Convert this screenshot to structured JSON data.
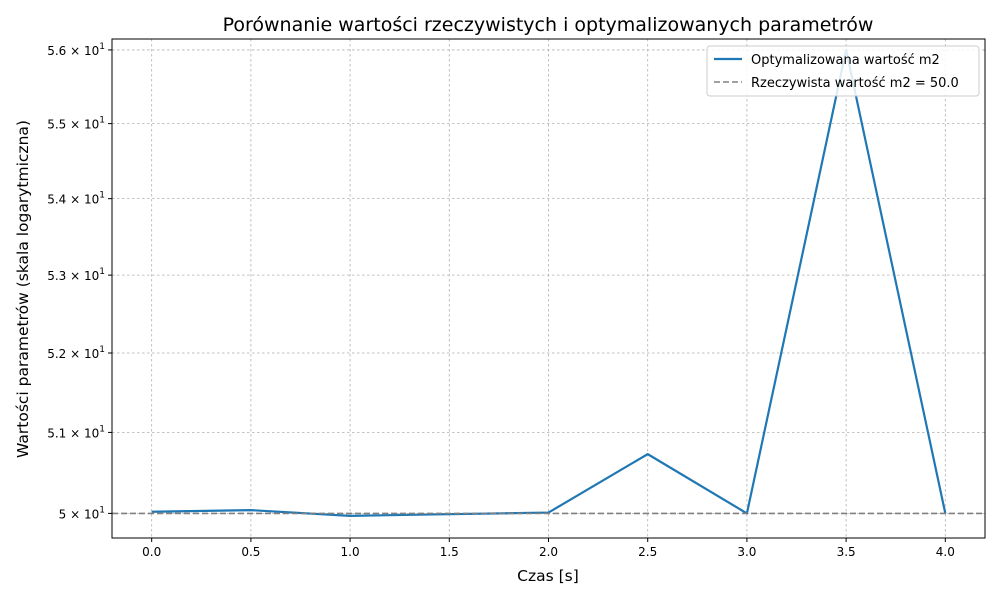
{
  "chart_data": {
    "type": "line",
    "title": "Porównanie wartości rzeczywistych i optymalizowanych parametrów",
    "xlabel": "Czas [s]",
    "ylabel": "Wartości parametrów (skala logarytmiczna)",
    "yscale": "log",
    "xlim": [
      -0.2,
      4.2
    ],
    "ylim": [
      49.7,
      56.15
    ],
    "xticks": [
      0.0,
      0.5,
      1.0,
      1.5,
      2.0,
      2.5,
      3.0,
      3.5,
      4.0
    ],
    "xtick_labels": [
      "0.0",
      "0.5",
      "1.0",
      "1.5",
      "2.0",
      "2.5",
      "3.0",
      "3.5",
      "4.0"
    ],
    "yticks": [
      50,
      51,
      52,
      53,
      54,
      55,
      56
    ],
    "ytick_labels": [
      {
        "mantissa": "",
        "exp": "1"
      },
      {
        "mantissa": "5.1 × ",
        "exp": "1"
      },
      {
        "mantissa": "5.2 × ",
        "exp": "1"
      },
      {
        "mantissa": "5.3 × ",
        "exp": "1"
      },
      {
        "mantissa": "5.4 × ",
        "exp": "1"
      },
      {
        "mantissa": "5.5 × ",
        "exp": "1"
      },
      {
        "mantissa": "5.6 × ",
        "exp": "1"
      }
    ],
    "ytick_base_first": "5 × 10",
    "ytick_base": "10",
    "grid": true,
    "legend_position": "top-right",
    "series": [
      {
        "name": "Optymalizowana wartość m2",
        "style": "solid",
        "color": "#1f77b4",
        "x": [
          0.0,
          0.5,
          1.0,
          1.5,
          2.0,
          2.5,
          3.0,
          3.5,
          4.0
        ],
        "y": [
          50.02,
          50.04,
          49.97,
          49.99,
          50.01,
          50.73,
          50.0,
          56.0,
          50.0
        ]
      },
      {
        "name": "Rzeczywista wartość m2 = 50.0",
        "style": "dashed",
        "color": "#808080",
        "x": [
          -0.2,
          4.2
        ],
        "y": [
          50.0,
          50.0
        ]
      }
    ]
  }
}
